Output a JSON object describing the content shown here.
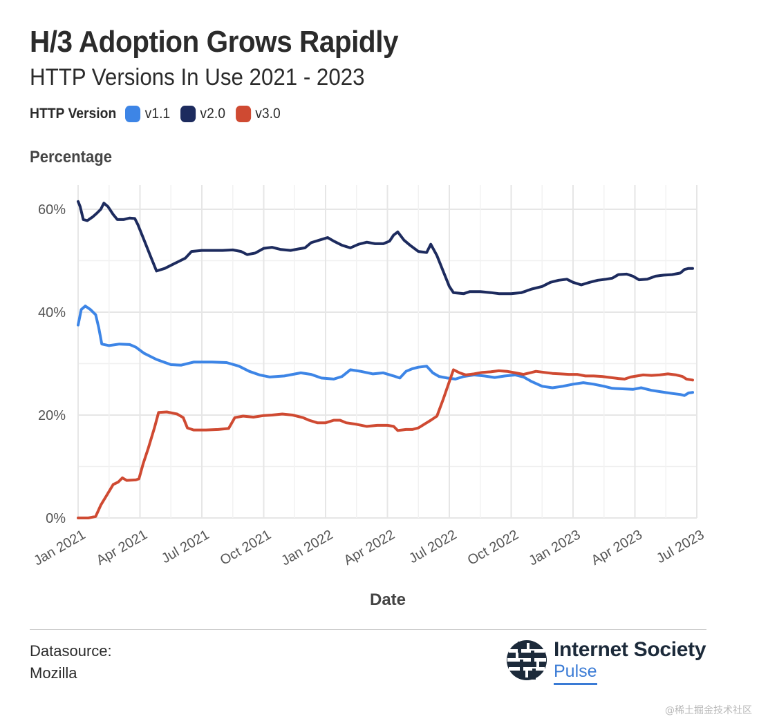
{
  "header": {
    "title": "H/3 Adoption Grows Rapidly",
    "subtitle": "HTTP Versions In Use 2021 - 2023"
  },
  "legend": {
    "title": "HTTP Version",
    "items": [
      {
        "label": "v1.1",
        "color": "#3d85e6"
      },
      {
        "label": "v2.0",
        "color": "#1d2b5e"
      },
      {
        "label": "v3.0",
        "color": "#cf4a32"
      }
    ]
  },
  "footer": {
    "datasource_label": "Datasource:",
    "datasource_value": "Mozilla",
    "brand_name": "Internet Society",
    "brand_product": "Pulse",
    "watermark": "@稀土掘金技术社区"
  },
  "chart_data": {
    "type": "line",
    "title": "H/3 Adoption Grows Rapidly",
    "subtitle": "HTTP Versions In Use 2021 - 2023",
    "xlabel": "Date",
    "ylabel": "Percentage",
    "ylim": [
      0,
      65
    ],
    "xlim": [
      0,
      30
    ],
    "grid": true,
    "legend_position": "top-left",
    "x_ticks": [
      {
        "x": 0,
        "label": "Jan 2021"
      },
      {
        "x": 3,
        "label": "Apr 2021"
      },
      {
        "x": 6,
        "label": "Jul 2021"
      },
      {
        "x": 9,
        "label": "Oct 2021"
      },
      {
        "x": 12,
        "label": "Jan 2022"
      },
      {
        "x": 15,
        "label": "Apr 2022"
      },
      {
        "x": 18,
        "label": "Jul 2022"
      },
      {
        "x": 21,
        "label": "Oct 2022"
      },
      {
        "x": 24,
        "label": "Jan 2023"
      },
      {
        "x": 27,
        "label": "Apr 2023"
      },
      {
        "x": 30,
        "label": "Jul 2023"
      }
    ],
    "y_ticks": [
      {
        "y": 0,
        "label": "0%"
      },
      {
        "y": 20,
        "label": "20%"
      },
      {
        "y": 40,
        "label": "40%"
      },
      {
        "y": 60,
        "label": "60%"
      }
    ],
    "series": [
      {
        "name": "v1.1",
        "color": "#3d85e6",
        "points": [
          [
            0,
            37.5
          ],
          [
            0.15,
            40.5
          ],
          [
            0.35,
            41.2
          ],
          [
            0.6,
            40.5
          ],
          [
            0.85,
            39.5
          ],
          [
            1.0,
            37
          ],
          [
            1.15,
            33.8
          ],
          [
            1.5,
            33.5
          ],
          [
            2.0,
            33.8
          ],
          [
            2.5,
            33.7
          ],
          [
            2.8,
            33.2
          ],
          [
            3.2,
            32
          ],
          [
            3.8,
            30.8
          ],
          [
            4.5,
            29.8
          ],
          [
            5.0,
            29.7
          ],
          [
            5.6,
            30.3
          ],
          [
            6.5,
            30.3
          ],
          [
            7.2,
            30.2
          ],
          [
            7.8,
            29.5
          ],
          [
            8.3,
            28.5
          ],
          [
            8.8,
            27.8
          ],
          [
            9.3,
            27.4
          ],
          [
            10.0,
            27.6
          ],
          [
            10.8,
            28.2
          ],
          [
            11.3,
            27.9
          ],
          [
            11.8,
            27.2
          ],
          [
            12.4,
            27.0
          ],
          [
            12.8,
            27.5
          ],
          [
            13.2,
            28.8
          ],
          [
            13.7,
            28.5
          ],
          [
            14.3,
            28.0
          ],
          [
            14.8,
            28.2
          ],
          [
            15.3,
            27.6
          ],
          [
            15.6,
            27.2
          ],
          [
            15.9,
            28.5
          ],
          [
            16.2,
            29.0
          ],
          [
            16.5,
            29.3
          ],
          [
            16.9,
            29.5
          ],
          [
            17.2,
            28.2
          ],
          [
            17.5,
            27.5
          ],
          [
            17.9,
            27.2
          ],
          [
            18.3,
            27.0
          ],
          [
            18.7,
            27.5
          ],
          [
            19.2,
            27.8
          ],
          [
            19.7,
            27.6
          ],
          [
            20.2,
            27.3
          ],
          [
            20.7,
            27.6
          ],
          [
            21.2,
            27.8
          ],
          [
            21.6,
            27.4
          ],
          [
            22.0,
            26.5
          ],
          [
            22.5,
            25.6
          ],
          [
            23.0,
            25.3
          ],
          [
            23.5,
            25.6
          ],
          [
            24.0,
            26.0
          ],
          [
            24.5,
            26.3
          ],
          [
            25.0,
            26.0
          ],
          [
            25.5,
            25.6
          ],
          [
            25.9,
            25.2
          ],
          [
            26.4,
            25.1
          ],
          [
            26.9,
            25.0
          ],
          [
            27.3,
            25.3
          ],
          [
            27.8,
            24.8
          ],
          [
            28.3,
            24.5
          ],
          [
            28.8,
            24.2
          ],
          [
            29.2,
            24.0
          ],
          [
            29.4,
            23.8
          ],
          [
            29.6,
            24.3
          ],
          [
            29.8,
            24.4
          ]
        ]
      },
      {
        "name": "v2.0",
        "color": "#1d2b5e",
        "points": [
          [
            0,
            61.5
          ],
          [
            0.1,
            60.5
          ],
          [
            0.25,
            58
          ],
          [
            0.45,
            57.8
          ],
          [
            0.7,
            58.5
          ],
          [
            0.9,
            59.2
          ],
          [
            1.1,
            60
          ],
          [
            1.25,
            61.2
          ],
          [
            1.45,
            60.5
          ],
          [
            1.7,
            59
          ],
          [
            1.9,
            58
          ],
          [
            2.2,
            58
          ],
          [
            2.5,
            58.3
          ],
          [
            2.75,
            58.2
          ],
          [
            2.9,
            57
          ],
          [
            3.2,
            54
          ],
          [
            3.5,
            51
          ],
          [
            3.8,
            48
          ],
          [
            4.2,
            48.5
          ],
          [
            4.7,
            49.5
          ],
          [
            5.2,
            50.5
          ],
          [
            5.5,
            51.8
          ],
          [
            6.0,
            52
          ],
          [
            6.5,
            52
          ],
          [
            7.0,
            52
          ],
          [
            7.5,
            52.1
          ],
          [
            7.9,
            51.8
          ],
          [
            8.2,
            51.2
          ],
          [
            8.6,
            51.5
          ],
          [
            9.0,
            52.4
          ],
          [
            9.4,
            52.6
          ],
          [
            9.8,
            52.2
          ],
          [
            10.3,
            52.0
          ],
          [
            10.7,
            52.3
          ],
          [
            11.0,
            52.5
          ],
          [
            11.3,
            53.5
          ],
          [
            11.7,
            54.0
          ],
          [
            12.1,
            54.5
          ],
          [
            12.4,
            53.8
          ],
          [
            12.8,
            53.0
          ],
          [
            13.2,
            52.5
          ],
          [
            13.6,
            53.2
          ],
          [
            14.0,
            53.6
          ],
          [
            14.4,
            53.3
          ],
          [
            14.8,
            53.3
          ],
          [
            15.1,
            53.8
          ],
          [
            15.3,
            55.0
          ],
          [
            15.5,
            55.6
          ],
          [
            15.8,
            54.0
          ],
          [
            16.1,
            53.0
          ],
          [
            16.5,
            51.8
          ],
          [
            16.9,
            51.6
          ],
          [
            17.1,
            53.2
          ],
          [
            17.4,
            51.0
          ],
          [
            17.7,
            48.0
          ],
          [
            18.0,
            45.0
          ],
          [
            18.2,
            43.8
          ],
          [
            18.7,
            43.6
          ],
          [
            19.0,
            44.0
          ],
          [
            19.5,
            44.0
          ],
          [
            20.0,
            43.8
          ],
          [
            20.4,
            43.6
          ],
          [
            21.0,
            43.6
          ],
          [
            21.5,
            43.8
          ],
          [
            22.0,
            44.5
          ],
          [
            22.5,
            45.0
          ],
          [
            22.9,
            45.8
          ],
          [
            23.3,
            46.2
          ],
          [
            23.7,
            46.4
          ],
          [
            24.0,
            45.8
          ],
          [
            24.4,
            45.3
          ],
          [
            24.8,
            45.8
          ],
          [
            25.2,
            46.2
          ],
          [
            25.6,
            46.4
          ],
          [
            25.9,
            46.6
          ],
          [
            26.2,
            47.3
          ],
          [
            26.6,
            47.4
          ],
          [
            26.9,
            47.0
          ],
          [
            27.2,
            46.3
          ],
          [
            27.6,
            46.4
          ],
          [
            28.0,
            47.0
          ],
          [
            28.4,
            47.2
          ],
          [
            28.8,
            47.3
          ],
          [
            29.2,
            47.6
          ],
          [
            29.4,
            48.3
          ],
          [
            29.6,
            48.5
          ],
          [
            29.8,
            48.5
          ]
        ]
      },
      {
        "name": "v3.0",
        "color": "#cf4a32",
        "points": [
          [
            0,
            0
          ],
          [
            0.5,
            0
          ],
          [
            0.85,
            0.3
          ],
          [
            1.1,
            2.5
          ],
          [
            1.4,
            4.5
          ],
          [
            1.7,
            6.5
          ],
          [
            1.95,
            7.0
          ],
          [
            2.15,
            7.8
          ],
          [
            2.35,
            7.3
          ],
          [
            2.8,
            7.4
          ],
          [
            2.95,
            7.6
          ],
          [
            3.15,
            10.5
          ],
          [
            3.4,
            13.5
          ],
          [
            3.7,
            17.5
          ],
          [
            3.9,
            20.5
          ],
          [
            4.3,
            20.6
          ],
          [
            4.8,
            20.2
          ],
          [
            5.1,
            19.5
          ],
          [
            5.3,
            17.5
          ],
          [
            5.6,
            17.1
          ],
          [
            6.2,
            17.1
          ],
          [
            6.8,
            17.2
          ],
          [
            7.3,
            17.4
          ],
          [
            7.6,
            19.5
          ],
          [
            8.0,
            19.8
          ],
          [
            8.5,
            19.6
          ],
          [
            9.0,
            19.9
          ],
          [
            9.4,
            20.0
          ],
          [
            9.9,
            20.2
          ],
          [
            10.4,
            20.0
          ],
          [
            10.9,
            19.5
          ],
          [
            11.2,
            19.0
          ],
          [
            11.6,
            18.5
          ],
          [
            12.0,
            18.5
          ],
          [
            12.4,
            19.0
          ],
          [
            12.7,
            19.0
          ],
          [
            13.0,
            18.5
          ],
          [
            13.5,
            18.2
          ],
          [
            14.0,
            17.8
          ],
          [
            14.5,
            18.0
          ],
          [
            15.0,
            18.0
          ],
          [
            15.3,
            17.8
          ],
          [
            15.5,
            17.0
          ],
          [
            15.9,
            17.2
          ],
          [
            16.2,
            17.2
          ],
          [
            16.5,
            17.5
          ],
          [
            16.9,
            18.5
          ],
          [
            17.1,
            19.0
          ],
          [
            17.4,
            19.8
          ],
          [
            17.7,
            23.0
          ],
          [
            18.0,
            26.5
          ],
          [
            18.2,
            28.8
          ],
          [
            18.5,
            28.2
          ],
          [
            18.8,
            27.8
          ],
          [
            19.2,
            28.0
          ],
          [
            19.6,
            28.3
          ],
          [
            20.0,
            28.4
          ],
          [
            20.4,
            28.6
          ],
          [
            20.8,
            28.5
          ],
          [
            21.2,
            28.2
          ],
          [
            21.6,
            27.9
          ],
          [
            21.9,
            28.2
          ],
          [
            22.2,
            28.5
          ],
          [
            22.6,
            28.3
          ],
          [
            23.0,
            28.1
          ],
          [
            23.4,
            28.0
          ],
          [
            23.8,
            27.9
          ],
          [
            24.2,
            27.9
          ],
          [
            24.6,
            27.6
          ],
          [
            25.0,
            27.6
          ],
          [
            25.4,
            27.5
          ],
          [
            25.8,
            27.3
          ],
          [
            26.2,
            27.1
          ],
          [
            26.5,
            27.0
          ],
          [
            26.8,
            27.4
          ],
          [
            27.1,
            27.6
          ],
          [
            27.4,
            27.8
          ],
          [
            27.8,
            27.7
          ],
          [
            28.2,
            27.8
          ],
          [
            28.6,
            28.0
          ],
          [
            29.0,
            27.8
          ],
          [
            29.3,
            27.5
          ],
          [
            29.5,
            27.0
          ],
          [
            29.8,
            26.8
          ]
        ]
      }
    ]
  }
}
